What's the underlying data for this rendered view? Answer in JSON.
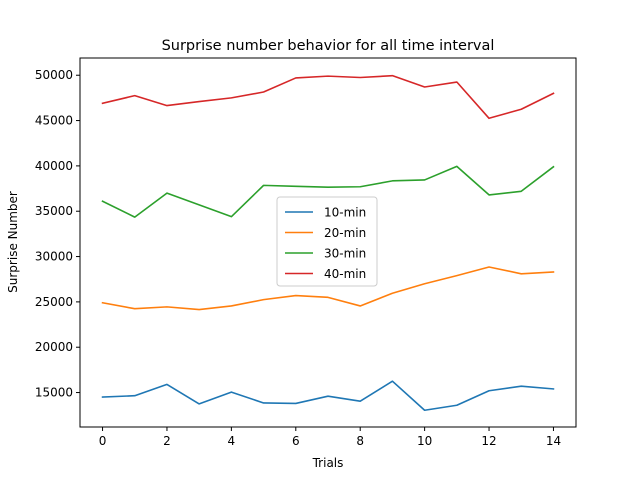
{
  "chart_data": {
    "type": "line",
    "title": "Surprise number behavior for all time interval",
    "xlabel": "Trials",
    "ylabel": "Surprise Number",
    "x": [
      0,
      1,
      2,
      3,
      4,
      5,
      6,
      7,
      8,
      9,
      10,
      11,
      12,
      13,
      14
    ],
    "xlim": [
      -0.7,
      14.7
    ],
    "ylim": [
      11200,
      51900
    ],
    "xticks": [
      0,
      2,
      4,
      6,
      8,
      10,
      12,
      14
    ],
    "yticks": [
      15000,
      20000,
      25000,
      30000,
      35000,
      40000,
      45000,
      50000
    ],
    "grid": false,
    "legend_position": "center",
    "series": [
      {
        "name": "10-min",
        "color": "#1f77b4",
        "values": [
          14500,
          14650,
          15900,
          13750,
          15050,
          13850,
          13800,
          14600,
          14050,
          16250,
          13050,
          13600,
          15200,
          15700,
          15400
        ]
      },
      {
        "name": "20-min",
        "color": "#ff7f0e",
        "values": [
          24900,
          24250,
          24450,
          24150,
          24550,
          25250,
          25700,
          25500,
          24550,
          25950,
          27000,
          27900,
          28850,
          28100,
          28300
        ]
      },
      {
        "name": "30-min",
        "color": "#2ca02c",
        "values": [
          36100,
          34350,
          37000,
          35700,
          34400,
          37850,
          37750,
          37650,
          37700,
          38350,
          38450,
          39950,
          36800,
          37200,
          39900
        ]
      },
      {
        "name": "40-min",
        "color": "#d62728",
        "values": [
          46900,
          47750,
          46650,
          47100,
          47500,
          48150,
          49700,
          49900,
          49750,
          49950,
          48700,
          49250,
          45250,
          46250,
          48000
        ]
      }
    ]
  }
}
